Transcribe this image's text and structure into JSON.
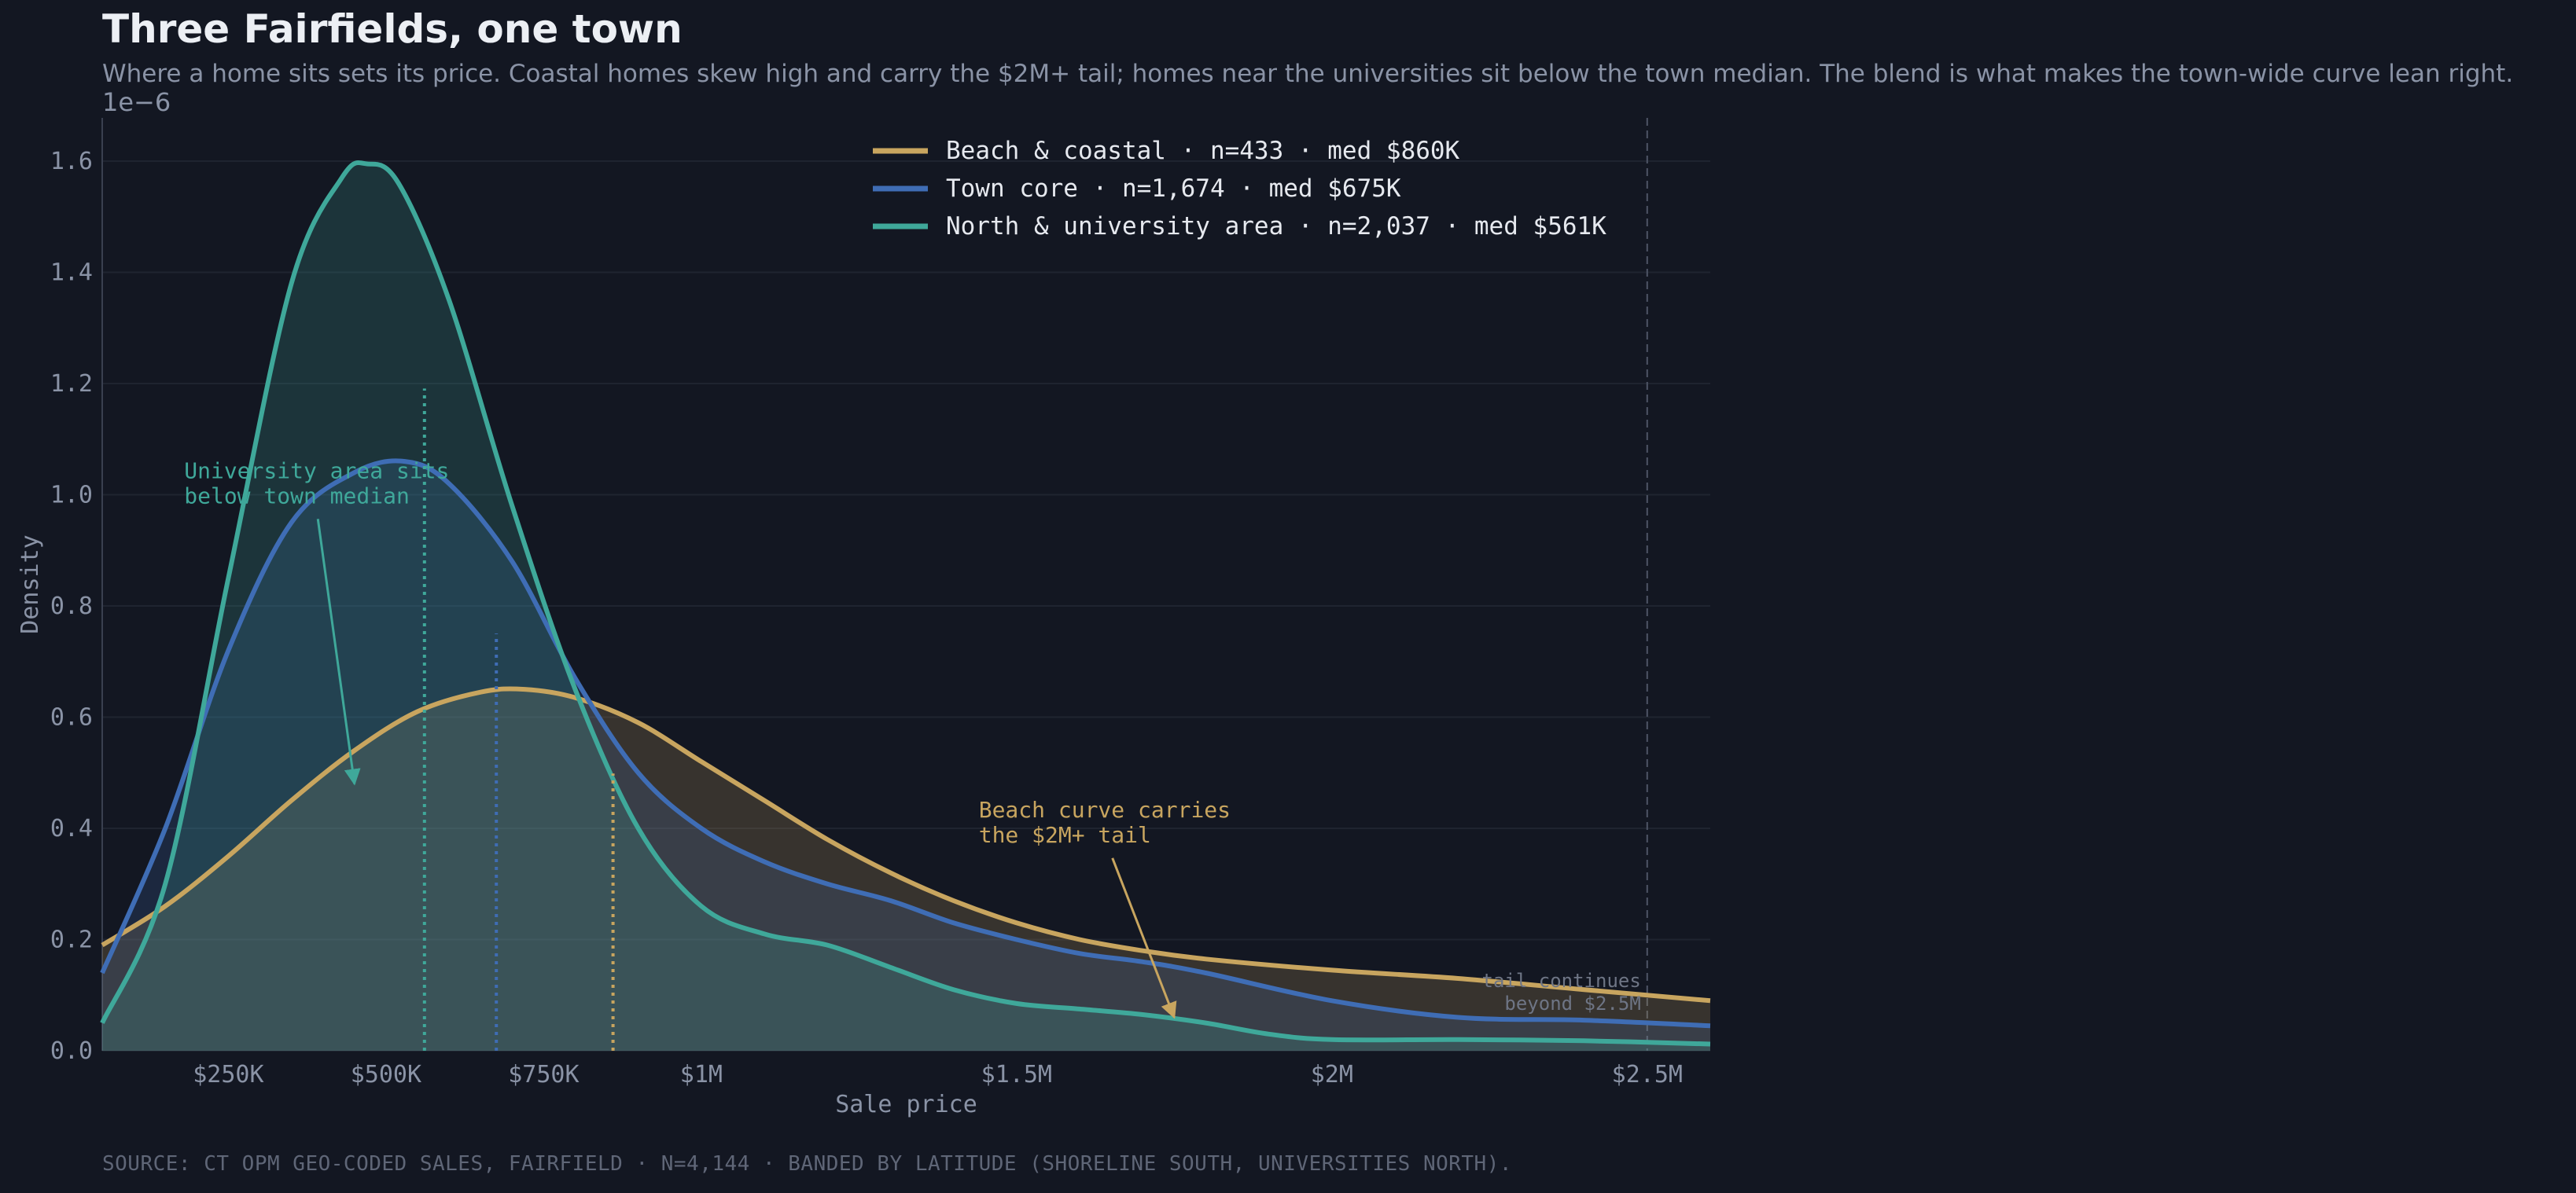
{
  "title": "Three Fairfields, one town",
  "subtitle": "Where a home sits sets its price. Coastal homes skew high and carry the $2M+ tail; homes near the universities sit below the town median. The blend is what makes the town-wide curve lean right.",
  "source": "SOURCE: CT OPM GEO-CODED SALES, FAIRFIELD · N=4,144 · BANDED BY LATITUDE (SHORELINE SOUTH, UNIVERSITIES NORTH).",
  "colors": {
    "coastal": "#c8a55f",
    "core": "#3f6db5",
    "north": "#3fa89a",
    "bg": "#131722"
  },
  "chart_data": {
    "type": "area",
    "xlabel": "Sale price",
    "ylabel": "Density",
    "y_scale_label": "1e−6",
    "xlim": [
      50000,
      2600000
    ],
    "ylim": [
      0,
      1.6
    ],
    "x_ticks": [
      {
        "value": 250000,
        "label": "$250K"
      },
      {
        "value": 500000,
        "label": "$500K"
      },
      {
        "value": 750000,
        "label": "$750K"
      },
      {
        "value": 1000000,
        "label": "$1M"
      },
      {
        "value": 1500000,
        "label": "$1.5M"
      },
      {
        "value": 2000000,
        "label": "$2M"
      },
      {
        "value": 2500000,
        "label": "$2.5M"
      }
    ],
    "y_ticks": [
      {
        "value": 0.0,
        "label": "0.0"
      },
      {
        "value": 0.2,
        "label": "0.2"
      },
      {
        "value": 0.4,
        "label": "0.4"
      },
      {
        "value": 0.6,
        "label": "0.6"
      },
      {
        "value": 0.8,
        "label": "0.8"
      },
      {
        "value": 1.0,
        "label": "1.0"
      },
      {
        "value": 1.2,
        "label": "1.2"
      },
      {
        "value": 1.4,
        "label": "1.4"
      },
      {
        "value": 1.6,
        "label": "1.6"
      }
    ],
    "grid": "horizontal",
    "legend_position": "top-right",
    "series": [
      {
        "key": "coastal",
        "name": "Beach & coastal  ·  n=433  ·  med $860K",
        "median": 860000,
        "x": [
          50000,
          150000,
          250000,
          350000,
          450000,
          550000,
          650000,
          720000,
          800000,
          900000,
          1000000,
          1100000,
          1200000,
          1300000,
          1400000,
          1500000,
          1600000,
          1700000,
          1800000,
          2000000,
          2200000,
          2400000,
          2600000
        ],
        "y": [
          0.19,
          0.26,
          0.35,
          0.45,
          0.54,
          0.61,
          0.645,
          0.65,
          0.635,
          0.59,
          0.52,
          0.45,
          0.38,
          0.32,
          0.27,
          0.23,
          0.2,
          0.18,
          0.165,
          0.145,
          0.13,
          0.11,
          0.09
        ]
      },
      {
        "key": "core",
        "name": "Town core  ·  n=1,674  ·  med $675K",
        "median": 675000,
        "x": [
          50000,
          150000,
          250000,
          350000,
          450000,
          530000,
          600000,
          700000,
          800000,
          900000,
          1000000,
          1100000,
          1200000,
          1300000,
          1400000,
          1500000,
          1600000,
          1700000,
          1800000,
          2000000,
          2200000,
          2400000,
          2600000
        ],
        "y": [
          0.14,
          0.4,
          0.72,
          0.95,
          1.04,
          1.06,
          1.02,
          0.88,
          0.67,
          0.5,
          0.4,
          0.34,
          0.3,
          0.27,
          0.23,
          0.2,
          0.175,
          0.16,
          0.14,
          0.09,
          0.06,
          0.055,
          0.045
        ]
      },
      {
        "key": "north",
        "name": "North & university area  ·  n=2,037  ·  med $561K",
        "median": 561000,
        "x": [
          50000,
          150000,
          250000,
          350000,
          430000,
          470000,
          520000,
          600000,
          700000,
          800000,
          900000,
          1000000,
          1100000,
          1200000,
          1300000,
          1400000,
          1500000,
          1600000,
          1700000,
          1800000,
          1900000,
          2000000,
          2200000,
          2400000,
          2600000
        ],
        "y": [
          0.05,
          0.3,
          0.85,
          1.38,
          1.57,
          1.595,
          1.56,
          1.35,
          0.98,
          0.65,
          0.4,
          0.26,
          0.21,
          0.19,
          0.15,
          0.11,
          0.085,
          0.075,
          0.065,
          0.05,
          0.03,
          0.02,
          0.02,
          0.018,
          0.012
        ]
      }
    ],
    "reference_line": {
      "x": 2500000,
      "label": "tail continues\nbeyond $2.5M"
    },
    "annotations": [
      {
        "key": "north",
        "text": "University area sits\nbelow town median",
        "point": [
          450000,
          0.48
        ],
        "text_at": [
          180000,
          1.03
        ]
      },
      {
        "key": "coastal",
        "text": "Beach curve carries\nthe $2M+ tail",
        "point": [
          1750000,
          0.06
        ],
        "text_at": [
          1440000,
          0.42
        ]
      }
    ]
  }
}
